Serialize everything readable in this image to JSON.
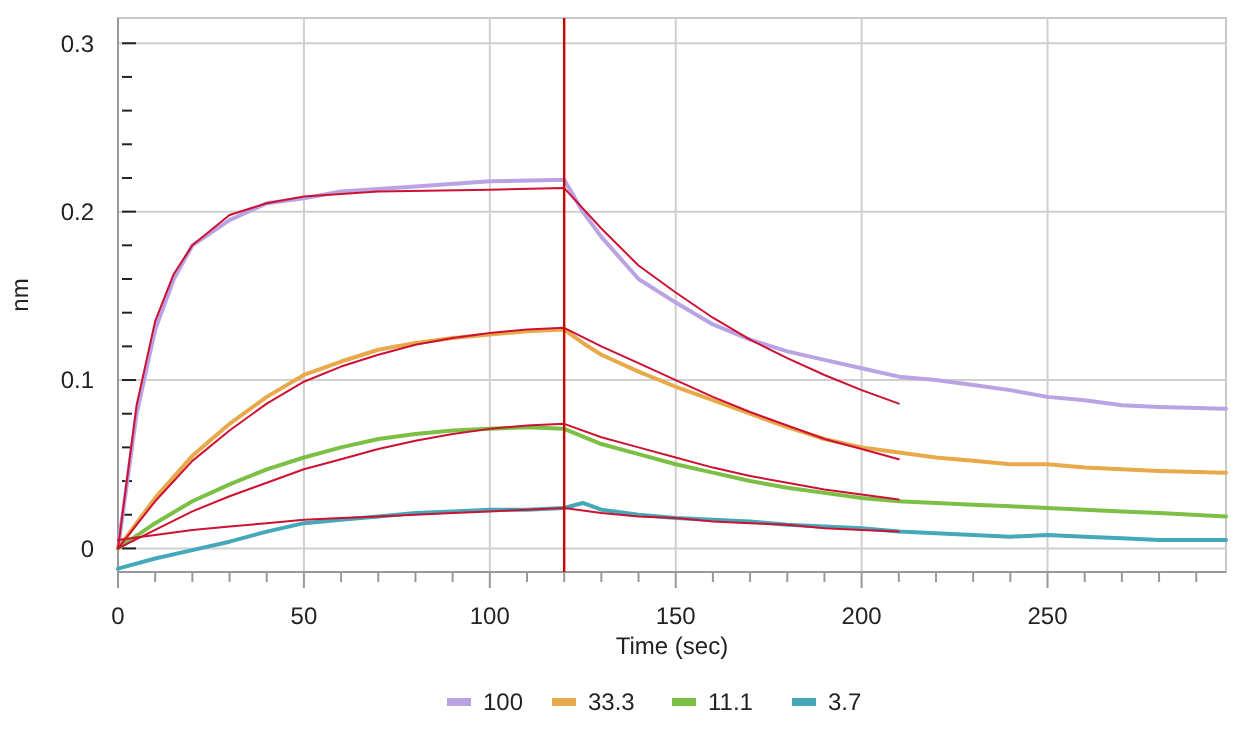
{
  "chart_data": {
    "type": "line",
    "xlabel": "Time (sec)",
    "ylabel": "nm",
    "xlim": [
      0,
      298
    ],
    "ylim": [
      -0.014,
      0.315
    ],
    "xticks": [
      0,
      {
        "value": 10,
        "label": null
      },
      {
        "value": 20,
        "label": null
      },
      {
        "value": 30,
        "label": null
      },
      {
        "value": 40,
        "label": null
      },
      50,
      {
        "value": 60,
        "label": null
      },
      {
        "value": 70,
        "label": null
      },
      {
        "value": 80,
        "label": null
      },
      {
        "value": 90,
        "label": null
      },
      100,
      {
        "value": 110,
        "label": null
      },
      {
        "value": 120,
        "label": null
      },
      {
        "value": 130,
        "label": null
      },
      {
        "value": 140,
        "label": null
      },
      150,
      {
        "value": 160,
        "label": null
      },
      {
        "value": 170,
        "label": null
      },
      {
        "value": 180,
        "label": null
      },
      {
        "value": 190,
        "label": null
      },
      200,
      {
        "value": 210,
        "label": null
      },
      {
        "value": 220,
        "label": null
      },
      {
        "value": 230,
        "label": null
      },
      {
        "value": 240,
        "label": null
      },
      250,
      {
        "value": 260,
        "label": null
      },
      {
        "value": 270,
        "label": null
      },
      {
        "value": 280,
        "label": null
      },
      {
        "value": 290,
        "label": null
      }
    ],
    "yticks": [
      0,
      {
        "value": 0.02,
        "label": null
      },
      {
        "value": 0.04,
        "label": null
      },
      {
        "value": 0.06,
        "label": null
      },
      {
        "value": 0.08,
        "label": null
      },
      0.1,
      {
        "value": 0.12,
        "label": null
      },
      {
        "value": 0.14,
        "label": null
      },
      {
        "value": 0.16,
        "label": null
      },
      {
        "value": 0.18,
        "label": null
      },
      0.2,
      {
        "value": 0.22,
        "label": null
      },
      {
        "value": 0.24,
        "label": null
      },
      {
        "value": 0.26,
        "label": null
      },
      {
        "value": 0.28,
        "label": null
      },
      0.3
    ],
    "grid": true,
    "legend": "bottom",
    "marker": "none",
    "line_style": "solid",
    "ref_lines": [
      {
        "axis": "x",
        "value": 120,
        "color": "#cc0000"
      }
    ],
    "series": [
      {
        "name": "100",
        "color": "#b9a3e3",
        "x": [
          0,
          5,
          10,
          15,
          20,
          30,
          40,
          50,
          60,
          80,
          100,
          120,
          125,
          130,
          140,
          150,
          160,
          170,
          180,
          190,
          200,
          210,
          220,
          230,
          240,
          250,
          260,
          270,
          280,
          298
        ],
        "values": [
          0,
          0.08,
          0.13,
          0.16,
          0.18,
          0.195,
          0.205,
          0.208,
          0.212,
          0.215,
          0.218,
          0.219,
          0.2,
          0.185,
          0.16,
          0.146,
          0.133,
          0.124,
          0.117,
          0.112,
          0.107,
          0.102,
          0.1,
          0.097,
          0.094,
          0.09,
          0.088,
          0.085,
          0.084,
          0.083
        ]
      },
      {
        "name": "33.3",
        "color": "#e8a94a",
        "x": [
          0,
          10,
          20,
          30,
          40,
          50,
          60,
          70,
          80,
          90,
          100,
          110,
          120,
          125,
          130,
          140,
          150,
          160,
          170,
          180,
          190,
          200,
          210,
          220,
          230,
          240,
          250,
          260,
          270,
          280,
          298
        ],
        "values": [
          0,
          0.03,
          0.055,
          0.074,
          0.09,
          0.103,
          0.111,
          0.118,
          0.122,
          0.125,
          0.127,
          0.129,
          0.13,
          0.122,
          0.115,
          0.105,
          0.096,
          0.088,
          0.08,
          0.072,
          0.065,
          0.06,
          0.057,
          0.054,
          0.052,
          0.05,
          0.05,
          0.048,
          0.047,
          0.046,
          0.045
        ]
      },
      {
        "name": "11.1",
        "color": "#7cbf45",
        "x": [
          0,
          10,
          20,
          30,
          40,
          50,
          60,
          70,
          80,
          90,
          100,
          110,
          120,
          130,
          140,
          150,
          160,
          170,
          180,
          190,
          200,
          210,
          220,
          230,
          240,
          250,
          260,
          270,
          280,
          298
        ],
        "values": [
          0,
          0.015,
          0.028,
          0.038,
          0.047,
          0.054,
          0.06,
          0.065,
          0.068,
          0.07,
          0.071,
          0.072,
          0.071,
          0.062,
          0.056,
          0.05,
          0.045,
          0.04,
          0.036,
          0.033,
          0.03,
          0.028,
          0.027,
          0.026,
          0.025,
          0.024,
          0.023,
          0.022,
          0.021,
          0.019
        ]
      },
      {
        "name": "3.7",
        "color": "#45a8b8",
        "x": [
          0,
          10,
          20,
          30,
          40,
          50,
          60,
          70,
          80,
          90,
          100,
          110,
          120,
          125,
          130,
          140,
          150,
          160,
          170,
          180,
          190,
          200,
          210,
          220,
          230,
          240,
          250,
          260,
          270,
          280,
          298
        ],
        "values": [
          -0.012,
          -0.006,
          -0.001,
          0.004,
          0.01,
          0.015,
          0.017,
          0.019,
          0.021,
          0.022,
          0.023,
          0.023,
          0.024,
          0.027,
          0.023,
          0.02,
          0.018,
          0.017,
          0.016,
          0.014,
          0.013,
          0.012,
          0.01,
          0.009,
          0.008,
          0.007,
          0.008,
          0.007,
          0.006,
          0.005,
          0.005
        ]
      },
      {
        "color": "#cc1133",
        "x": [
          0,
          5,
          10,
          15,
          20,
          30,
          40,
          50,
          70,
          100,
          120,
          130,
          140,
          150,
          160,
          170,
          180,
          190,
          200,
          210
        ],
        "values": [
          0,
          0.085,
          0.135,
          0.163,
          0.18,
          0.198,
          0.205,
          0.209,
          0.212,
          0.213,
          0.214,
          0.19,
          0.168,
          0.152,
          0.137,
          0.124,
          0.113,
          0.103,
          0.094,
          0.086
        ]
      },
      {
        "color": "#cc1133",
        "x": [
          0,
          10,
          20,
          30,
          40,
          50,
          60,
          70,
          80,
          90,
          100,
          110,
          120,
          130,
          140,
          150,
          160,
          170,
          180,
          190,
          200,
          210
        ],
        "values": [
          0,
          0.028,
          0.052,
          0.07,
          0.086,
          0.099,
          0.108,
          0.115,
          0.121,
          0.125,
          0.128,
          0.13,
          0.131,
          0.12,
          0.11,
          0.1,
          0.09,
          0.081,
          0.073,
          0.065,
          0.059,
          0.053
        ]
      },
      {
        "color": "#cc1133",
        "x": [
          0,
          10,
          20,
          30,
          40,
          50,
          60,
          70,
          80,
          90,
          100,
          110,
          120,
          130,
          140,
          150,
          160,
          170,
          180,
          190,
          200,
          210
        ],
        "values": [
          0,
          0.011,
          0.022,
          0.031,
          0.039,
          0.047,
          0.053,
          0.059,
          0.064,
          0.068,
          0.071,
          0.073,
          0.074,
          0.066,
          0.06,
          0.054,
          0.048,
          0.043,
          0.039,
          0.035,
          0.032,
          0.029
        ]
      },
      {
        "color": "#cc1133",
        "x": [
          0,
          10,
          20,
          30,
          40,
          50,
          60,
          70,
          80,
          90,
          100,
          110,
          120,
          130,
          140,
          150,
          160,
          170,
          180,
          190,
          200,
          210
        ],
        "values": [
          0.005,
          0.008,
          0.011,
          0.013,
          0.015,
          0.017,
          0.018,
          0.019,
          0.02,
          0.021,
          0.022,
          0.023,
          0.024,
          0.021,
          0.019,
          0.018,
          0.016,
          0.015,
          0.014,
          0.012,
          0.011,
          0.01
        ]
      }
    ]
  }
}
